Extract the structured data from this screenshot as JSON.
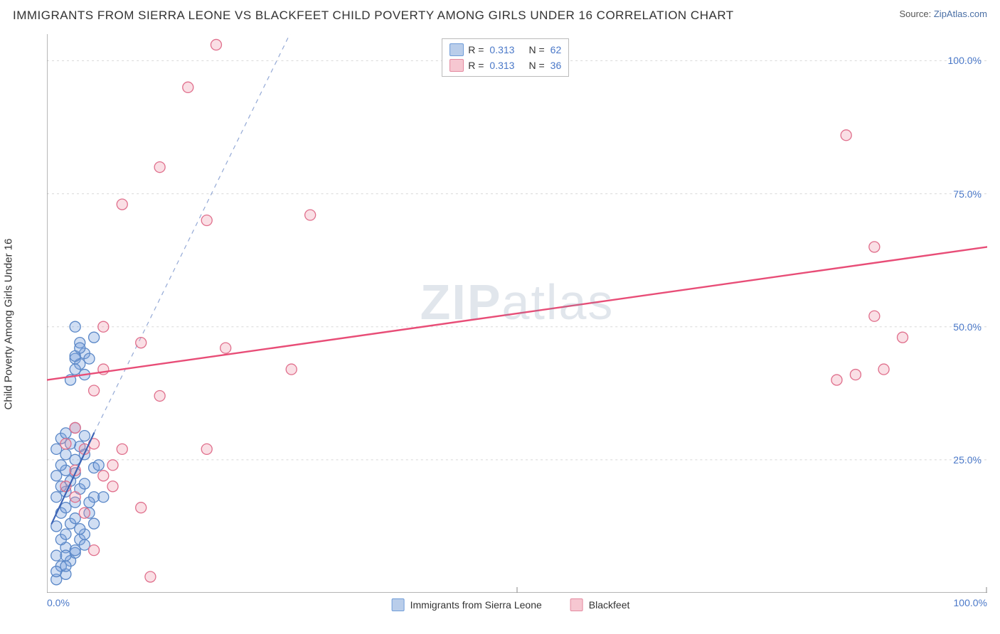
{
  "header": {
    "title": "IMMIGRANTS FROM SIERRA LEONE VS BLACKFEET CHILD POVERTY AMONG GIRLS UNDER 16 CORRELATION CHART",
    "source_prefix": "Source: ",
    "source_link": "ZipAtlas.com"
  },
  "watermark": {
    "bold": "ZIP",
    "rest": "atlas"
  },
  "chart": {
    "type": "scatter",
    "ylabel": "Child Poverty Among Girls Under 16",
    "xlim": [
      0,
      100
    ],
    "ylim": [
      0,
      105
    ],
    "xticks": [
      {
        "v": 0,
        "l": "0.0%"
      },
      {
        "v": 100,
        "l": "100.0%"
      }
    ],
    "yticks": [
      {
        "v": 25,
        "l": "25.0%"
      },
      {
        "v": 50,
        "l": "50.0%"
      },
      {
        "v": 75,
        "l": "75.0%"
      },
      {
        "v": 100,
        "l": "100.0%"
      }
    ],
    "grid_color": "#d8d8d8",
    "axis_color": "#888888",
    "xminor_at": 50,
    "background_color": "#ffffff",
    "marker_radius": 7.5,
    "marker_stroke_width": 1.3,
    "series": [
      {
        "id": "sierra_leone",
        "label": "Immigrants from Sierra Leone",
        "fill": "rgba(120,160,220,0.35)",
        "stroke": "#5a87c7",
        "swatch_fill": "#b9cdea",
        "swatch_stroke": "#6f9cd8",
        "R": "0.313",
        "N": "62",
        "points": [
          [
            1,
            2.5
          ],
          [
            2,
            3.5
          ],
          [
            1.5,
            5
          ],
          [
            2.5,
            6
          ],
          [
            1,
            7
          ],
          [
            3,
            7.5
          ],
          [
            2,
            8.5
          ],
          [
            1.5,
            10
          ],
          [
            3.5,
            10
          ],
          [
            2,
            11
          ],
          [
            4,
            11
          ],
          [
            1,
            12.5
          ],
          [
            2.5,
            13
          ],
          [
            3,
            14
          ],
          [
            1.5,
            15
          ],
          [
            4.5,
            15
          ],
          [
            2,
            16
          ],
          [
            3,
            17
          ],
          [
            1,
            18
          ],
          [
            5,
            18
          ],
          [
            2,
            19
          ],
          [
            3.5,
            19.5
          ],
          [
            1.5,
            20
          ],
          [
            4,
            20.5
          ],
          [
            2.5,
            21
          ],
          [
            1,
            22
          ],
          [
            3,
            22.5
          ],
          [
            2,
            23
          ],
          [
            5,
            23.5
          ],
          [
            1.5,
            24
          ],
          [
            3,
            25
          ],
          [
            2,
            26
          ],
          [
            4,
            26
          ],
          [
            1,
            27
          ],
          [
            3.5,
            27.5
          ],
          [
            2.5,
            28
          ],
          [
            1.5,
            29
          ],
          [
            4,
            29.5
          ],
          [
            2,
            30
          ],
          [
            3,
            31
          ],
          [
            5,
            13
          ],
          [
            6,
            18
          ],
          [
            4,
            9
          ],
          [
            5.5,
            24
          ],
          [
            3,
            8
          ],
          [
            4.5,
            17
          ],
          [
            2,
            7
          ],
          [
            1,
            4
          ],
          [
            3.5,
            12
          ],
          [
            2,
            5
          ],
          [
            3,
            44
          ],
          [
            4,
            45
          ],
          [
            3.5,
            47
          ],
          [
            5,
            48
          ],
          [
            3,
            50
          ],
          [
            3.5,
            43
          ],
          [
            4,
            41
          ],
          [
            2.5,
            40
          ],
          [
            3,
            42
          ],
          [
            4.5,
            44
          ],
          [
            3,
            44.5
          ],
          [
            3.5,
            46
          ]
        ],
        "trend": {
          "x1": 0.5,
          "y1": 13,
          "x2": 5,
          "y2": 30,
          "dash_x1": 5,
          "dash_y1": 30,
          "dash_x2": 30,
          "dash_y2": 120,
          "color": "#3d64b5",
          "width": 2.2
        }
      },
      {
        "id": "blackfeet",
        "label": "Blackfeet",
        "fill": "rgba(240,150,170,0.30)",
        "stroke": "#e06f8c",
        "swatch_fill": "#f6c7d1",
        "swatch_stroke": "#e48aa0",
        "R": "0.313",
        "N": "36",
        "points": [
          [
            18,
            103
          ],
          [
            15,
            95
          ],
          [
            12,
            80
          ],
          [
            8,
            73
          ],
          [
            17,
            70
          ],
          [
            28,
            71
          ],
          [
            6,
            50
          ],
          [
            10,
            47
          ],
          [
            19,
            46
          ],
          [
            26,
            42
          ],
          [
            5,
            38
          ],
          [
            6,
            42
          ],
          [
            12,
            37
          ],
          [
            3,
            31
          ],
          [
            5,
            28
          ],
          [
            8,
            27
          ],
          [
            17,
            27
          ],
          [
            7,
            24
          ],
          [
            10,
            16
          ],
          [
            2,
            20
          ],
          [
            3,
            23
          ],
          [
            4,
            27
          ],
          [
            2,
            28
          ],
          [
            6,
            22
          ],
          [
            11,
            3
          ],
          [
            5,
            8
          ],
          [
            84,
            40
          ],
          [
            86,
            41
          ],
          [
            89,
            42
          ],
          [
            88,
            52
          ],
          [
            88,
            65
          ],
          [
            91,
            48
          ],
          [
            85,
            86
          ],
          [
            4,
            15
          ],
          [
            3,
            18
          ],
          [
            7,
            20
          ]
        ],
        "trend": {
          "x1": 0,
          "y1": 40,
          "x2": 100,
          "y2": 65,
          "color": "#e84d77",
          "width": 2.4
        }
      }
    ],
    "top_legend": {
      "rows": [
        {
          "swatch": "sierra_leone",
          "r_label": "R =",
          "n_label": "N ="
        },
        {
          "swatch": "blackfeet",
          "r_label": "R =",
          "n_label": "N ="
        }
      ]
    }
  }
}
